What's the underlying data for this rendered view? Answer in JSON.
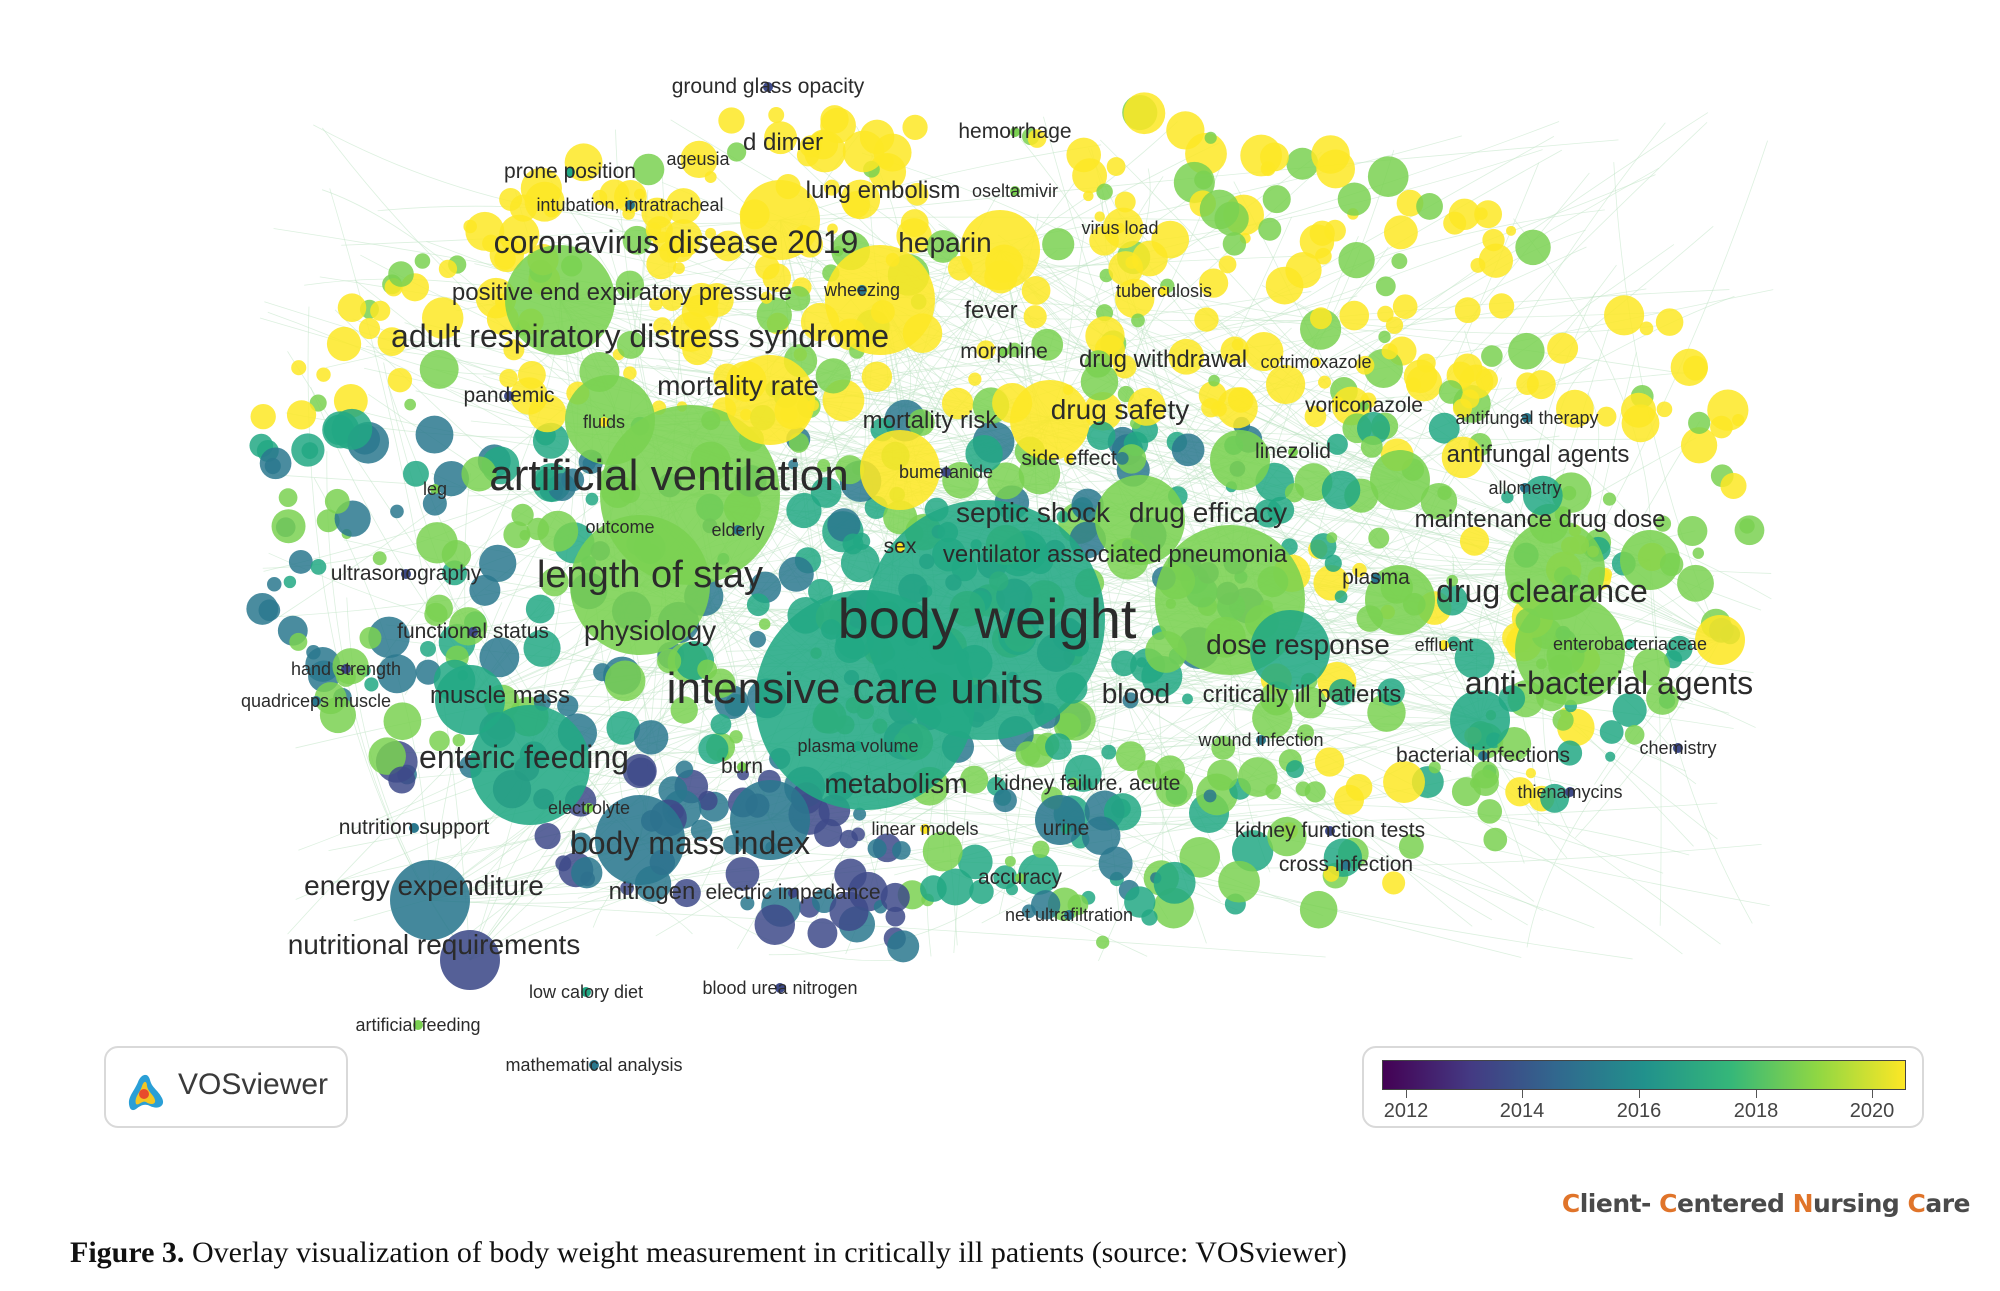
{
  "terms": [
    {
      "label": "ground glass opacity",
      "level": 2
    },
    {
      "label": "hemorrhage",
      "level": 2
    },
    {
      "label": "d dimer",
      "level": 3
    },
    {
      "label": "ageusia",
      "level": 1
    },
    {
      "label": "prone position",
      "level": 2
    },
    {
      "label": "lung embolism",
      "level": 3
    },
    {
      "label": "oseltamivir",
      "level": 1
    },
    {
      "label": "intubation, intratracheal",
      "level": 1
    },
    {
      "label": "virus load",
      "level": 1
    },
    {
      "label": "coronavirus disease 2019",
      "level": 5
    },
    {
      "label": "heparin",
      "level": 4
    },
    {
      "label": "positive end expiratory pressure",
      "level": 3
    },
    {
      "label": "wheezing",
      "level": 1
    },
    {
      "label": "tuberculosis",
      "level": 1
    },
    {
      "label": "fever",
      "level": 3
    },
    {
      "label": "adult respiratory distress syndrome",
      "level": 5
    },
    {
      "label": "morphine",
      "level": 2
    },
    {
      "label": "drug withdrawal",
      "level": 3
    },
    {
      "label": "cotrimoxazole",
      "level": 1
    },
    {
      "label": "mortality rate",
      "level": 4
    },
    {
      "label": "pandemic",
      "level": 2
    },
    {
      "label": "voriconazole",
      "level": 2
    },
    {
      "label": "antifungal therapy",
      "level": 1
    },
    {
      "label": "fluids",
      "level": 1
    },
    {
      "label": "mortality risk",
      "level": 3
    },
    {
      "label": "drug safety",
      "level": 4
    },
    {
      "label": "linezolid",
      "level": 2
    },
    {
      "label": "antifungal agents",
      "level": 3
    },
    {
      "label": "side effect",
      "level": 2
    },
    {
      "label": "artificial ventilation",
      "level": 7
    },
    {
      "label": "bumetanide",
      "level": 1
    },
    {
      "label": "leg",
      "level": 1
    },
    {
      "label": "allometry",
      "level": 1
    },
    {
      "label": "septic shock",
      "level": 4
    },
    {
      "label": "drug efficacy",
      "level": 4
    },
    {
      "label": "maintenance drug dose",
      "level": 3
    },
    {
      "label": "outcome",
      "level": 1
    },
    {
      "label": "elderly",
      "level": 1
    },
    {
      "label": "sex",
      "level": 2
    },
    {
      "label": "ventilator associated pneumonia",
      "level": 3
    },
    {
      "label": "ultrasonography",
      "level": 2
    },
    {
      "label": "length of stay",
      "level": 6
    },
    {
      "label": "plasma",
      "level": 2
    },
    {
      "label": "drug clearance",
      "level": 5
    },
    {
      "label": "body weight",
      "level": 9
    },
    {
      "label": "functional status",
      "level": 2
    },
    {
      "label": "physiology",
      "level": 4
    },
    {
      "label": "dose response",
      "level": 4
    },
    {
      "label": "effluent",
      "level": 1
    },
    {
      "label": "enterobacteriaceae",
      "level": 1
    },
    {
      "label": "hand strength",
      "level": 1
    },
    {
      "label": "anti-bacterial agents",
      "level": 5
    },
    {
      "label": "quadriceps muscle",
      "level": 1
    },
    {
      "label": "muscle mass",
      "level": 3
    },
    {
      "label": "intensive care units",
      "level": 7
    },
    {
      "label": "blood",
      "level": 4
    },
    {
      "label": "critically ill patients",
      "level": 3
    },
    {
      "label": "wound infection",
      "level": 1
    },
    {
      "label": "enteric feeding",
      "level": 5
    },
    {
      "label": "plasma volume",
      "level": 1
    },
    {
      "label": "chemistry",
      "level": 1
    },
    {
      "label": "burn",
      "level": 2
    },
    {
      "label": "bacterial infections",
      "level": 2
    },
    {
      "label": "metabolism",
      "level": 4
    },
    {
      "label": "kidney failure, acute",
      "level": 2
    },
    {
      "label": "thienamycins",
      "level": 1
    },
    {
      "label": "electrolyte",
      "level": 1
    },
    {
      "label": "nutrition support",
      "level": 2
    },
    {
      "label": "linear models",
      "level": 1
    },
    {
      "label": "urine",
      "level": 2
    },
    {
      "label": "kidney function tests",
      "level": 2
    },
    {
      "label": "body mass index",
      "level": 5
    },
    {
      "label": "cross infection",
      "level": 2
    },
    {
      "label": "energy expenditure",
      "level": 4
    },
    {
      "label": "nitrogen",
      "level": 3
    },
    {
      "label": "electric impedance",
      "level": 2
    },
    {
      "label": "accuracy",
      "level": 2
    },
    {
      "label": "net ultrafiltration",
      "level": 1
    },
    {
      "label": "nutritional requirements",
      "level": 4
    },
    {
      "label": "low calory diet",
      "level": 1
    },
    {
      "label": "blood urea nitrogen",
      "level": 1
    },
    {
      "label": "artificial feeding",
      "level": 1
    },
    {
      "label": "mathematical analysis",
      "level": 1
    }
  ],
  "colors": {
    "y2012": "#3e4a89",
    "y2014": "#2a788e",
    "y2016": "#22a884",
    "y2018": "#7ad151",
    "y2020": "#fde725",
    "link": "#bfe3c4"
  },
  "logo": {
    "name": "VOSviewer",
    "icon": "vosviewer-logo-icon"
  },
  "color_scale": {
    "ticks": [
      "2012",
      "2014",
      "2016",
      "2018",
      "2020"
    ]
  },
  "brand": {
    "part1_c": "C",
    "part1": "lient- ",
    "part2_c": "C",
    "part2": "entered ",
    "part3_c": "N",
    "part3": "ursing ",
    "part4_c": "C",
    "part4": "are"
  },
  "caption": {
    "label": "Figure 3.",
    "text": " Overlay visualization of body weight measurement in critically ill patients (source: VOSviewer)"
  }
}
